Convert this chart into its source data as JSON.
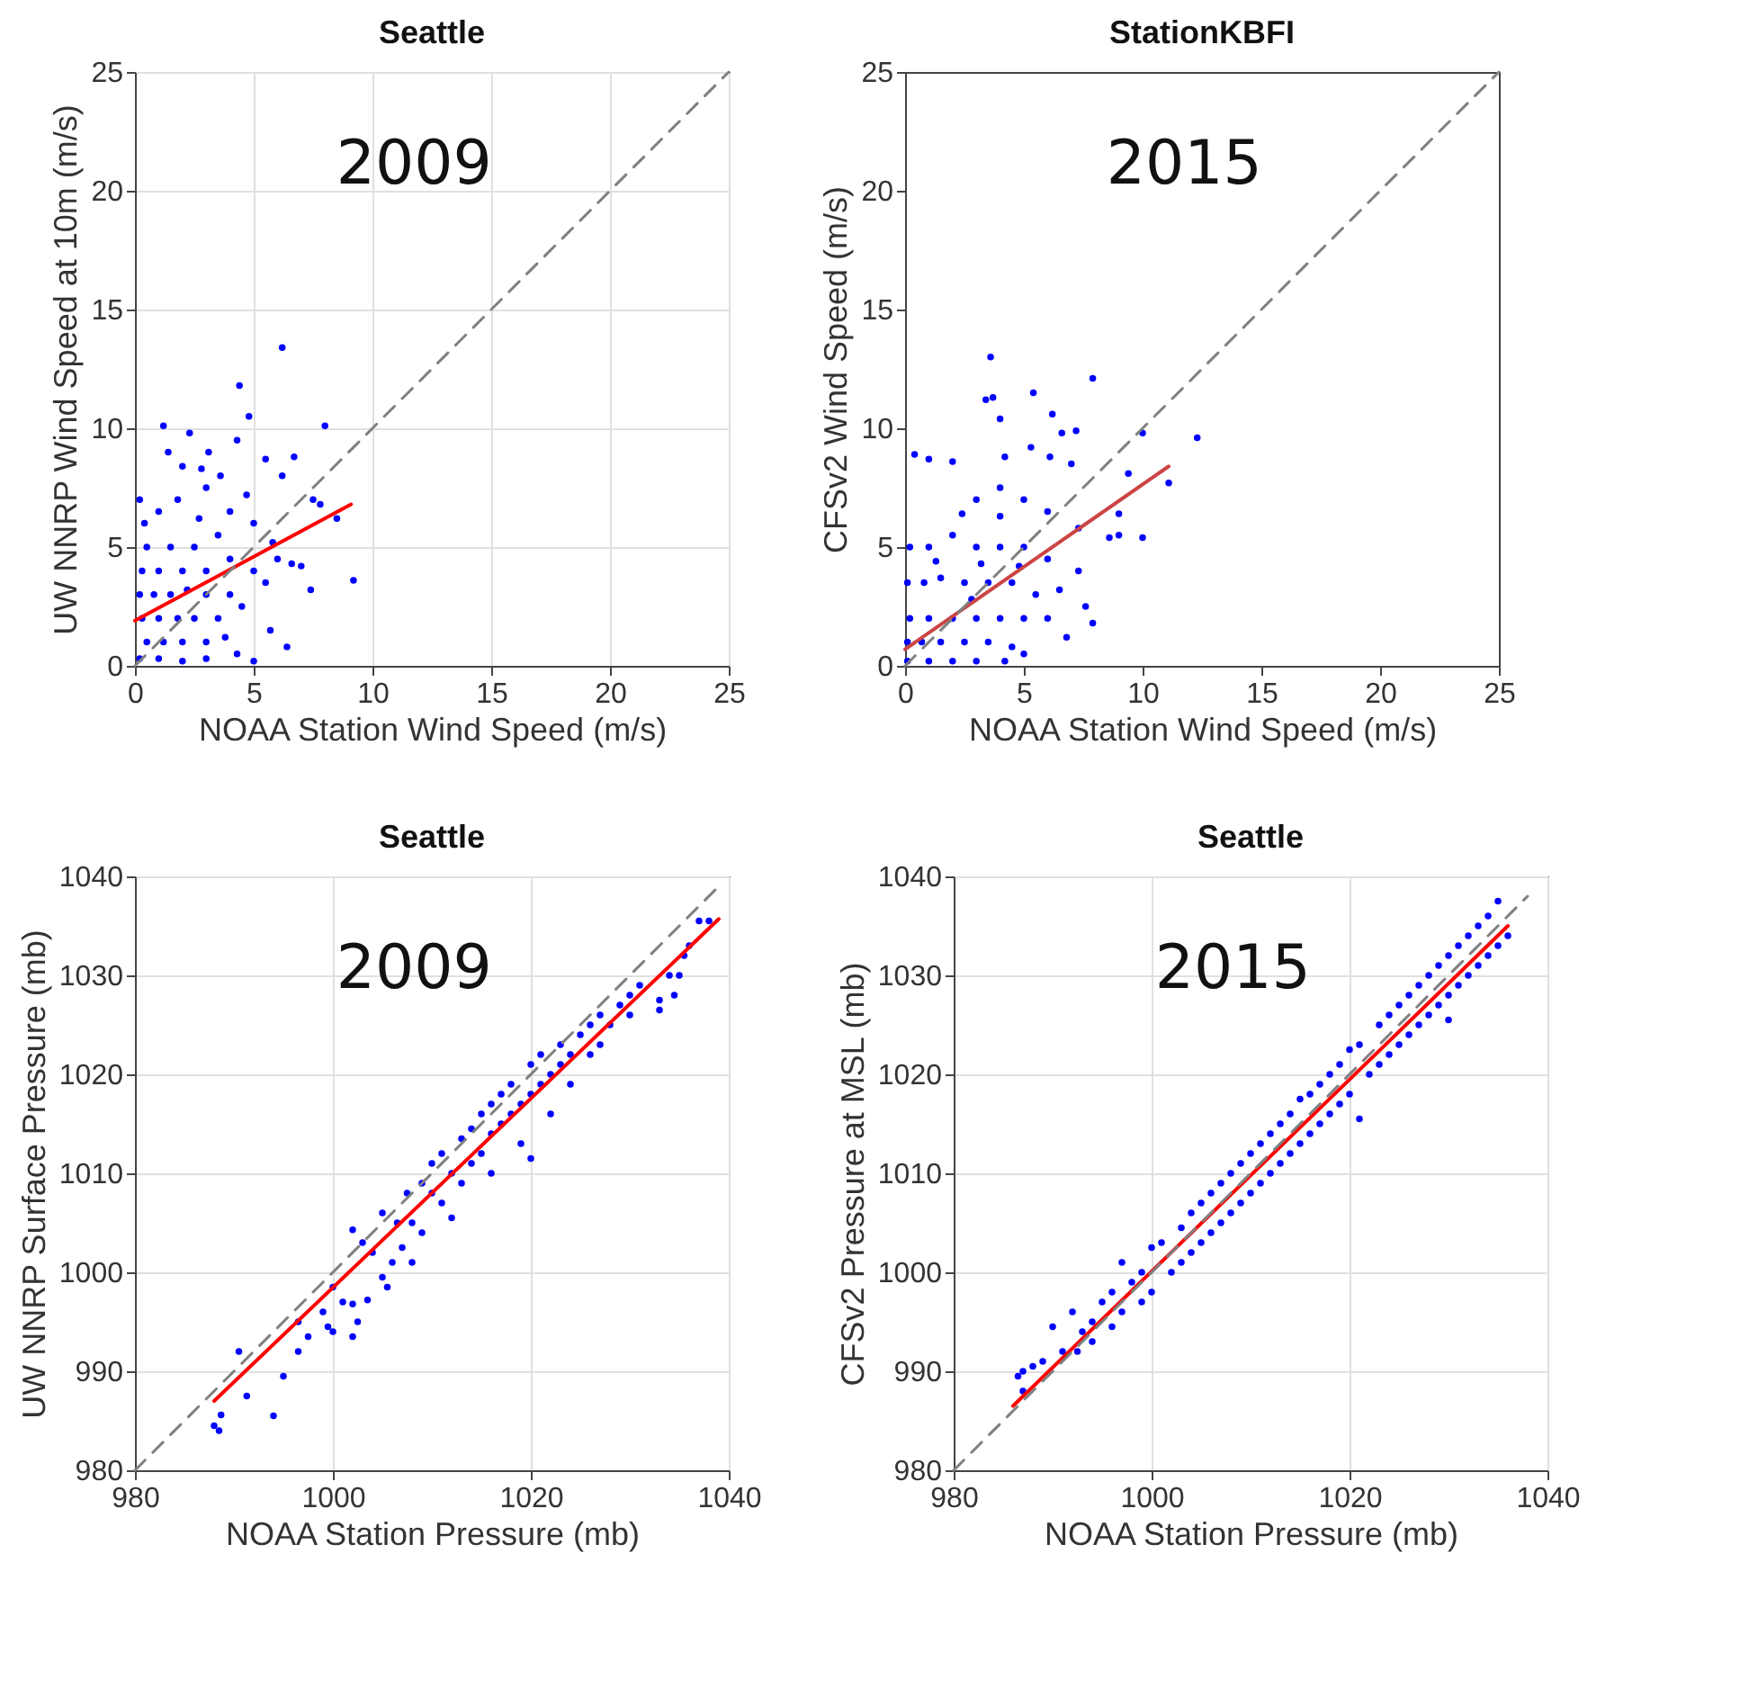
{
  "chart_data": [
    {
      "type": "scatter",
      "title": "Seattle",
      "xlabel": "NOAA Station Wind Speed (m/s)",
      "ylabel": "UW NNRP Wind Speed at 10m (m/s)",
      "xlim": [
        0,
        25
      ],
      "ylim": [
        0,
        25
      ],
      "xticks": [
        0,
        5,
        10,
        15,
        20,
        25
      ],
      "yticks": [
        0,
        5,
        10,
        15,
        20,
        25
      ],
      "grid": true,
      "annotations": [
        "2009"
      ],
      "series": [
        {
          "marker": "circle",
          "color": "#0000ff",
          "x": [
            6.2,
            4.4,
            4.8,
            1.2,
            8,
            4.3,
            2.3,
            3.1,
            1.4,
            6.7,
            5.5,
            2,
            2.8,
            6.2,
            7.5,
            9.2,
            6.4,
            7.4,
            5,
            4.3,
            0.2,
            0.4,
            1,
            3,
            4,
            5,
            3.5,
            2.5,
            1.5,
            0.5,
            0.3,
            1,
            2,
            3,
            4,
            5,
            6,
            7,
            0.2,
            0.8,
            1.5,
            2.2,
            3,
            4,
            5.5,
            0.3,
            1,
            1.8,
            2.5,
            3.5,
            4.5,
            0.5,
            1.2,
            2,
            3,
            0.2,
            1,
            2,
            3,
            5.7,
            3.8,
            2.7,
            1.8,
            4.7,
            3.6,
            5.8,
            6.6,
            8.5,
            7.8
          ],
          "values": [
            13.4,
            11.8,
            10.5,
            10.1,
            10.1,
            9.5,
            9.8,
            9,
            9,
            8.8,
            8.7,
            8.4,
            8.3,
            8,
            7,
            3.6,
            0.8,
            3.2,
            0.2,
            0.5,
            7,
            6,
            6.5,
            7.5,
            6.5,
            6,
            5.5,
            5,
            5,
            5,
            4,
            4,
            4,
            4,
            4.5,
            4,
            4.5,
            4.2,
            3,
            3,
            3,
            3.2,
            3,
            3,
            3.5,
            2,
            2,
            2,
            2,
            2,
            2.5,
            1,
            1,
            1,
            1,
            0.3,
            0.3,
            0.2,
            0.3,
            1.5,
            1.2,
            6.2,
            7,
            7.2,
            8,
            5.2,
            4.3,
            6.2,
            6.8
          ]
        },
        {
          "type": "line",
          "color": "#ff0000",
          "x": [
            0,
            9.1
          ],
          "values": [
            1.9,
            6.8
          ]
        },
        {
          "type": "line",
          "color": "#808080",
          "line_style": "dashed",
          "x": [
            0,
            25
          ],
          "values": [
            0,
            25
          ]
        }
      ]
    },
    {
      "type": "scatter",
      "title": "StationKBFI",
      "xlabel": "NOAA Station Wind Speed (m/s)",
      "ylabel": "CFSv2 Wind Speed (m/s)",
      "xlim": [
        0,
        25
      ],
      "ylim": [
        0,
        25
      ],
      "xticks": [
        0,
        5,
        10,
        15,
        20,
        25
      ],
      "yticks": [
        0,
        5,
        10,
        15,
        20,
        25
      ],
      "annotations": [
        "2015"
      ],
      "series": [
        {
          "marker": "circle",
          "color": "#0000ff",
          "x": [
            3.6,
            3.4,
            3.7,
            5.4,
            7.9,
            4,
            6.2,
            6.6,
            7.2,
            10,
            12.3,
            9.4,
            11.1,
            9,
            8.6,
            9,
            10,
            7.9,
            7.6,
            6.8,
            0.4,
            1,
            2,
            4.2,
            5.3,
            6.1,
            7,
            3,
            4,
            5,
            6,
            7.3,
            0.2,
            1,
            2,
            3,
            4,
            5,
            6,
            7.3,
            0.1,
            0.8,
            1.5,
            2.5,
            3.5,
            4.5,
            5.5,
            6.5,
            0.2,
            1,
            2,
            3,
            4,
            5,
            6,
            0.1,
            0.7,
            1.5,
            2.5,
            3.5,
            4.5,
            0.1,
            1,
            2,
            3,
            4.2,
            5,
            4,
            2.4,
            1.3,
            3.2,
            4.8,
            2.8
          ],
          "values": [
            13,
            11.2,
            11.3,
            11.5,
            12.1,
            10.4,
            10.6,
            9.8,
            9.9,
            9.8,
            9.6,
            8.1,
            7.7,
            6.4,
            5.4,
            5.5,
            5.4,
            1.8,
            2.5,
            1.2,
            8.9,
            8.7,
            8.6,
            8.8,
            9.2,
            8.8,
            8.5,
            7,
            7.5,
            7,
            6.5,
            5.8,
            5,
            5,
            5.5,
            5,
            5,
            5,
            4.5,
            4,
            3.5,
            3.5,
            3.7,
            3.5,
            3.5,
            3.5,
            3,
            3.2,
            2,
            2,
            2,
            2,
            2,
            2,
            2,
            1,
            1,
            1,
            1,
            1,
            0.8,
            0.2,
            0.2,
            0.2,
            0.2,
            0.2,
            0.5,
            6.3,
            6.4,
            4.4,
            4.3,
            4.2,
            2.8
          ]
        },
        {
          "type": "line",
          "color": "#cc4444",
          "x": [
            0,
            11.1
          ],
          "values": [
            0.7,
            8.4
          ]
        },
        {
          "type": "line",
          "color": "#808080",
          "line_style": "dashed",
          "x": [
            0,
            25
          ],
          "values": [
            0,
            25
          ]
        }
      ]
    },
    {
      "type": "scatter",
      "title": "Seattle",
      "xlabel": "NOAA Station Pressure (mb)",
      "ylabel": "UW NNRP Surface Pressure (mb)",
      "xlim": [
        980,
        1040
      ],
      "ylim": [
        980,
        1040
      ],
      "xticks": [
        980,
        1000,
        1020,
        1040
      ],
      "yticks": [
        980,
        990,
        1000,
        1010,
        1020,
        1030,
        1040
      ],
      "grid": true,
      "annotations": [
        "2009"
      ],
      "series": [
        {
          "marker": "circle",
          "color": "#0000ff",
          "x": [
            988,
            988.5,
            988.7,
            990.5,
            991.3,
            994,
            995,
            996.5,
            996.5,
            997.5,
            999,
            999.5,
            1000,
            1000,
            1001,
            1002,
            1002,
            1002.5,
            1002,
            1003,
            1003.5,
            1004,
            1005,
            1005.5,
            1005,
            1006,
            1006.5,
            1007,
            1007.5,
            1008,
            1008,
            1009,
            1009,
            1010,
            1010,
            1011,
            1011,
            1012,
            1012,
            1013,
            1013,
            1014,
            1014,
            1015,
            1015,
            1016,
            1016,
            1016,
            1017,
            1017,
            1018,
            1018,
            1019,
            1019,
            1020,
            1020,
            1020,
            1021,
            1021,
            1022,
            1022,
            1023,
            1023,
            1024,
            1024,
            1025,
            1026,
            1026,
            1027,
            1027,
            1028,
            1029,
            1030,
            1030,
            1031,
            1033,
            1033,
            1034,
            1034.5,
            1035,
            1035.5,
            1036,
            1037,
            1038
          ],
          "values": [
            984.5,
            984,
            985.6,
            992,
            987.5,
            985.5,
            989.5,
            992,
            995,
            993.5,
            996,
            994.5,
            994,
            998.5,
            997,
            993.5,
            996.8,
            995,
            1004.3,
            1003,
            997.2,
            1002,
            999.5,
            998.5,
            1006,
            1001,
            1005,
            1002.5,
            1008,
            1001,
            1005,
            1004,
            1009,
            1008,
            1011,
            1007,
            1012,
            1010,
            1005.5,
            1013.5,
            1009,
            1011,
            1014.5,
            1012,
            1016,
            1014,
            1017,
            1010,
            1015,
            1018,
            1016,
            1019,
            1017,
            1013,
            1018,
            1021,
            1011.5,
            1019,
            1022,
            1020,
            1016,
            1021,
            1023,
            1019,
            1022,
            1024,
            1022,
            1025,
            1023,
            1026,
            1025,
            1027,
            1028,
            1026,
            1029,
            1026.5,
            1027.5,
            1030,
            1028,
            1030,
            1032,
            1033,
            1035.5,
            1035.5
          ]
        },
        {
          "type": "line",
          "color": "#ff0000",
          "x": [
            988,
            1039
          ],
          "values": [
            987,
            1035.7
          ]
        },
        {
          "type": "line",
          "color": "#808080",
          "line_style": "dashed",
          "x": [
            980,
            1039
          ],
          "values": [
            980,
            1039
          ]
        }
      ]
    },
    {
      "type": "scatter",
      "title": "Seattle",
      "xlabel": "NOAA Station Pressure (mb)",
      "ylabel": "CFSv2 Pressure at MSL (mb)",
      "xlim": [
        980,
        1040
      ],
      "ylim": [
        980,
        1040
      ],
      "xticks": [
        980,
        1000,
        1020,
        1040
      ],
      "yticks": [
        980,
        990,
        1000,
        1010,
        1020,
        1030,
        1040
      ],
      "grid": true,
      "annotations": [
        "2015"
      ],
      "series": [
        {
          "marker": "circle",
          "color": "#0000ff",
          "x": [
            986.5,
            987,
            987,
            988,
            989,
            990,
            991,
            992,
            992.5,
            993,
            994,
            994,
            995,
            996,
            996,
            997,
            997,
            998,
            999,
            999,
            1000,
            1000,
            1001,
            1002,
            1003,
            1003,
            1004,
            1004,
            1005,
            1005,
            1006,
            1006,
            1007,
            1007,
            1008,
            1008,
            1009,
            1009,
            1010,
            1010,
            1011,
            1011,
            1012,
            1012,
            1013,
            1013,
            1014,
            1014,
            1015,
            1015,
            1016,
            1016,
            1017,
            1017,
            1018,
            1018,
            1019,
            1019,
            1020,
            1020,
            1021,
            1021,
            1022,
            1023,
            1023,
            1024,
            1024,
            1025,
            1025,
            1026,
            1026,
            1027,
            1027,
            1028,
            1028,
            1029,
            1029,
            1030,
            1030,
            1031,
            1031,
            1032,
            1032,
            1033,
            1033,
            1034,
            1034,
            1035,
            1035,
            1036,
            1030
          ],
          "values": [
            989.5,
            990,
            988,
            990.5,
            991,
            994.5,
            992,
            996,
            992,
            994,
            995,
            993,
            997,
            998,
            994.5,
            1001,
            996,
            999,
            1000,
            997,
            1002.5,
            998,
            1003,
            1000,
            1004.5,
            1001,
            1006,
            1002,
            1007,
            1003,
            1008,
            1004,
            1009,
            1005,
            1010,
            1006,
            1011,
            1007,
            1012,
            1008,
            1013,
            1009,
            1014,
            1010,
            1015,
            1011,
            1016,
            1012,
            1017.5,
            1013,
            1018,
            1014,
            1019,
            1015,
            1020,
            1016,
            1021,
            1017,
            1022.5,
            1018,
            1015.5,
            1023,
            1020,
            1025,
            1021,
            1026,
            1022,
            1027,
            1023,
            1028,
            1024,
            1029,
            1025,
            1030,
            1026,
            1031,
            1027,
            1032,
            1028,
            1033,
            1029,
            1034,
            1030,
            1035,
            1031,
            1036,
            1032,
            1037.5,
            1033,
            1034,
            1025.5
          ]
        },
        {
          "type": "line",
          "color": "#ff0000",
          "x": [
            986,
            1036
          ],
          "values": [
            986.5,
            1035
          ]
        },
        {
          "type": "line",
          "color": "#808080",
          "line_style": "dashed",
          "x": [
            980,
            1038
          ],
          "values": [
            980,
            1038
          ]
        }
      ]
    }
  ]
}
